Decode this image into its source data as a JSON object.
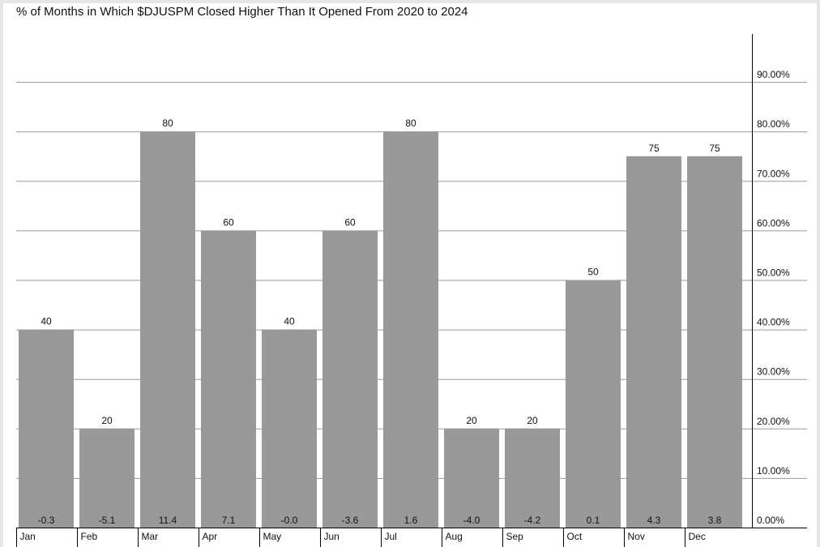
{
  "title": "% of Months in Which $DJUSPM Closed Higher Than It Opened From 2020 to 2024",
  "chart_data": {
    "type": "bar",
    "title": "% of Months in Which $DJUSPM Closed Higher Than It Opened From 2020 to 2024",
    "categories": [
      "Jan",
      "Feb",
      "Mar",
      "Apr",
      "May",
      "Jun",
      "Jul",
      "Aug",
      "Sep",
      "Oct",
      "Nov",
      "Dec"
    ],
    "values": [
      40,
      20,
      80,
      60,
      40,
      60,
      80,
      20,
      20,
      50,
      75,
      75
    ],
    "value_labels": [
      "40",
      "20",
      "80",
      "60",
      "40",
      "60",
      "80",
      "20",
      "20",
      "50",
      "75",
      "75"
    ],
    "bottom_labels": [
      "-0.3",
      "-5.1",
      "11.4",
      "7.1",
      "-0.0",
      "-3.6",
      "1.6",
      "-4.0",
      "-4.2",
      "0.1",
      "4.3",
      "3.8"
    ],
    "ylim": [
      0,
      100
    ],
    "yticks": [
      0,
      10,
      20,
      30,
      40,
      50,
      60,
      70,
      80,
      90
    ],
    "ytick_labels": [
      "0.00%",
      "10.00%",
      "20.00%",
      "30.00%",
      "40.00%",
      "50.00%",
      "60.00%",
      "70.00%",
      "80.00%",
      "90.00%"
    ],
    "y_axis_side": "right",
    "grid": true,
    "bar_color": "#999999",
    "grid_color": "#9a9a9a"
  }
}
